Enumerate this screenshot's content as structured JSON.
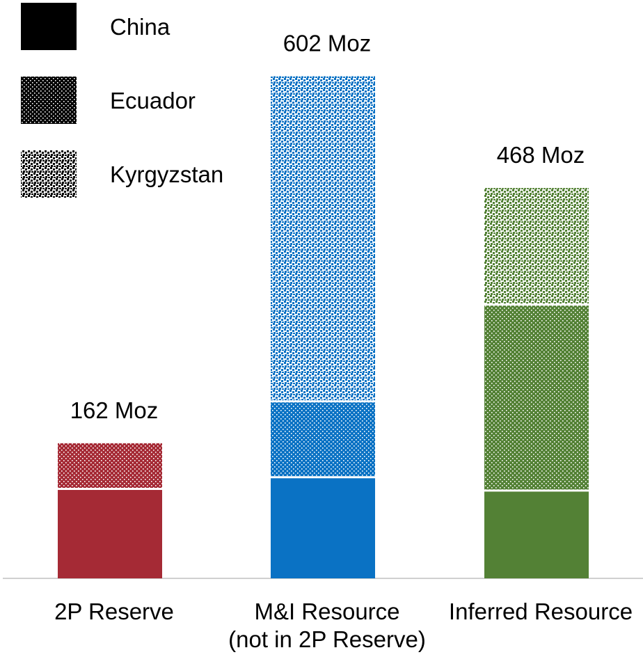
{
  "chart_data": {
    "type": "bar",
    "stacked": true,
    "categories": [
      "2P Reserve",
      "M&I Resource\n(not in 2P Reserve)",
      "Inferred Resource"
    ],
    "totals": [
      "162 Moz",
      "602 Moz",
      "468 Moz"
    ],
    "total_values": [
      162,
      602,
      468
    ],
    "series": [
      {
        "name": "China",
        "values": [
          106,
          120,
          104
        ],
        "pattern": "solid"
      },
      {
        "name": "Ecuador",
        "values": [
          56,
          91,
          223
        ],
        "pattern": "dots"
      },
      {
        "name": "Kyrgyzstan",
        "values": [
          0,
          391,
          141
        ],
        "pattern": "checker"
      }
    ],
    "category_colors": [
      "#a52a35",
      "#0a72c4",
      "#538135"
    ],
    "legend_color": "#000000",
    "legend_position": "top-left",
    "ylim": [
      0,
      640
    ],
    "grid": false
  }
}
